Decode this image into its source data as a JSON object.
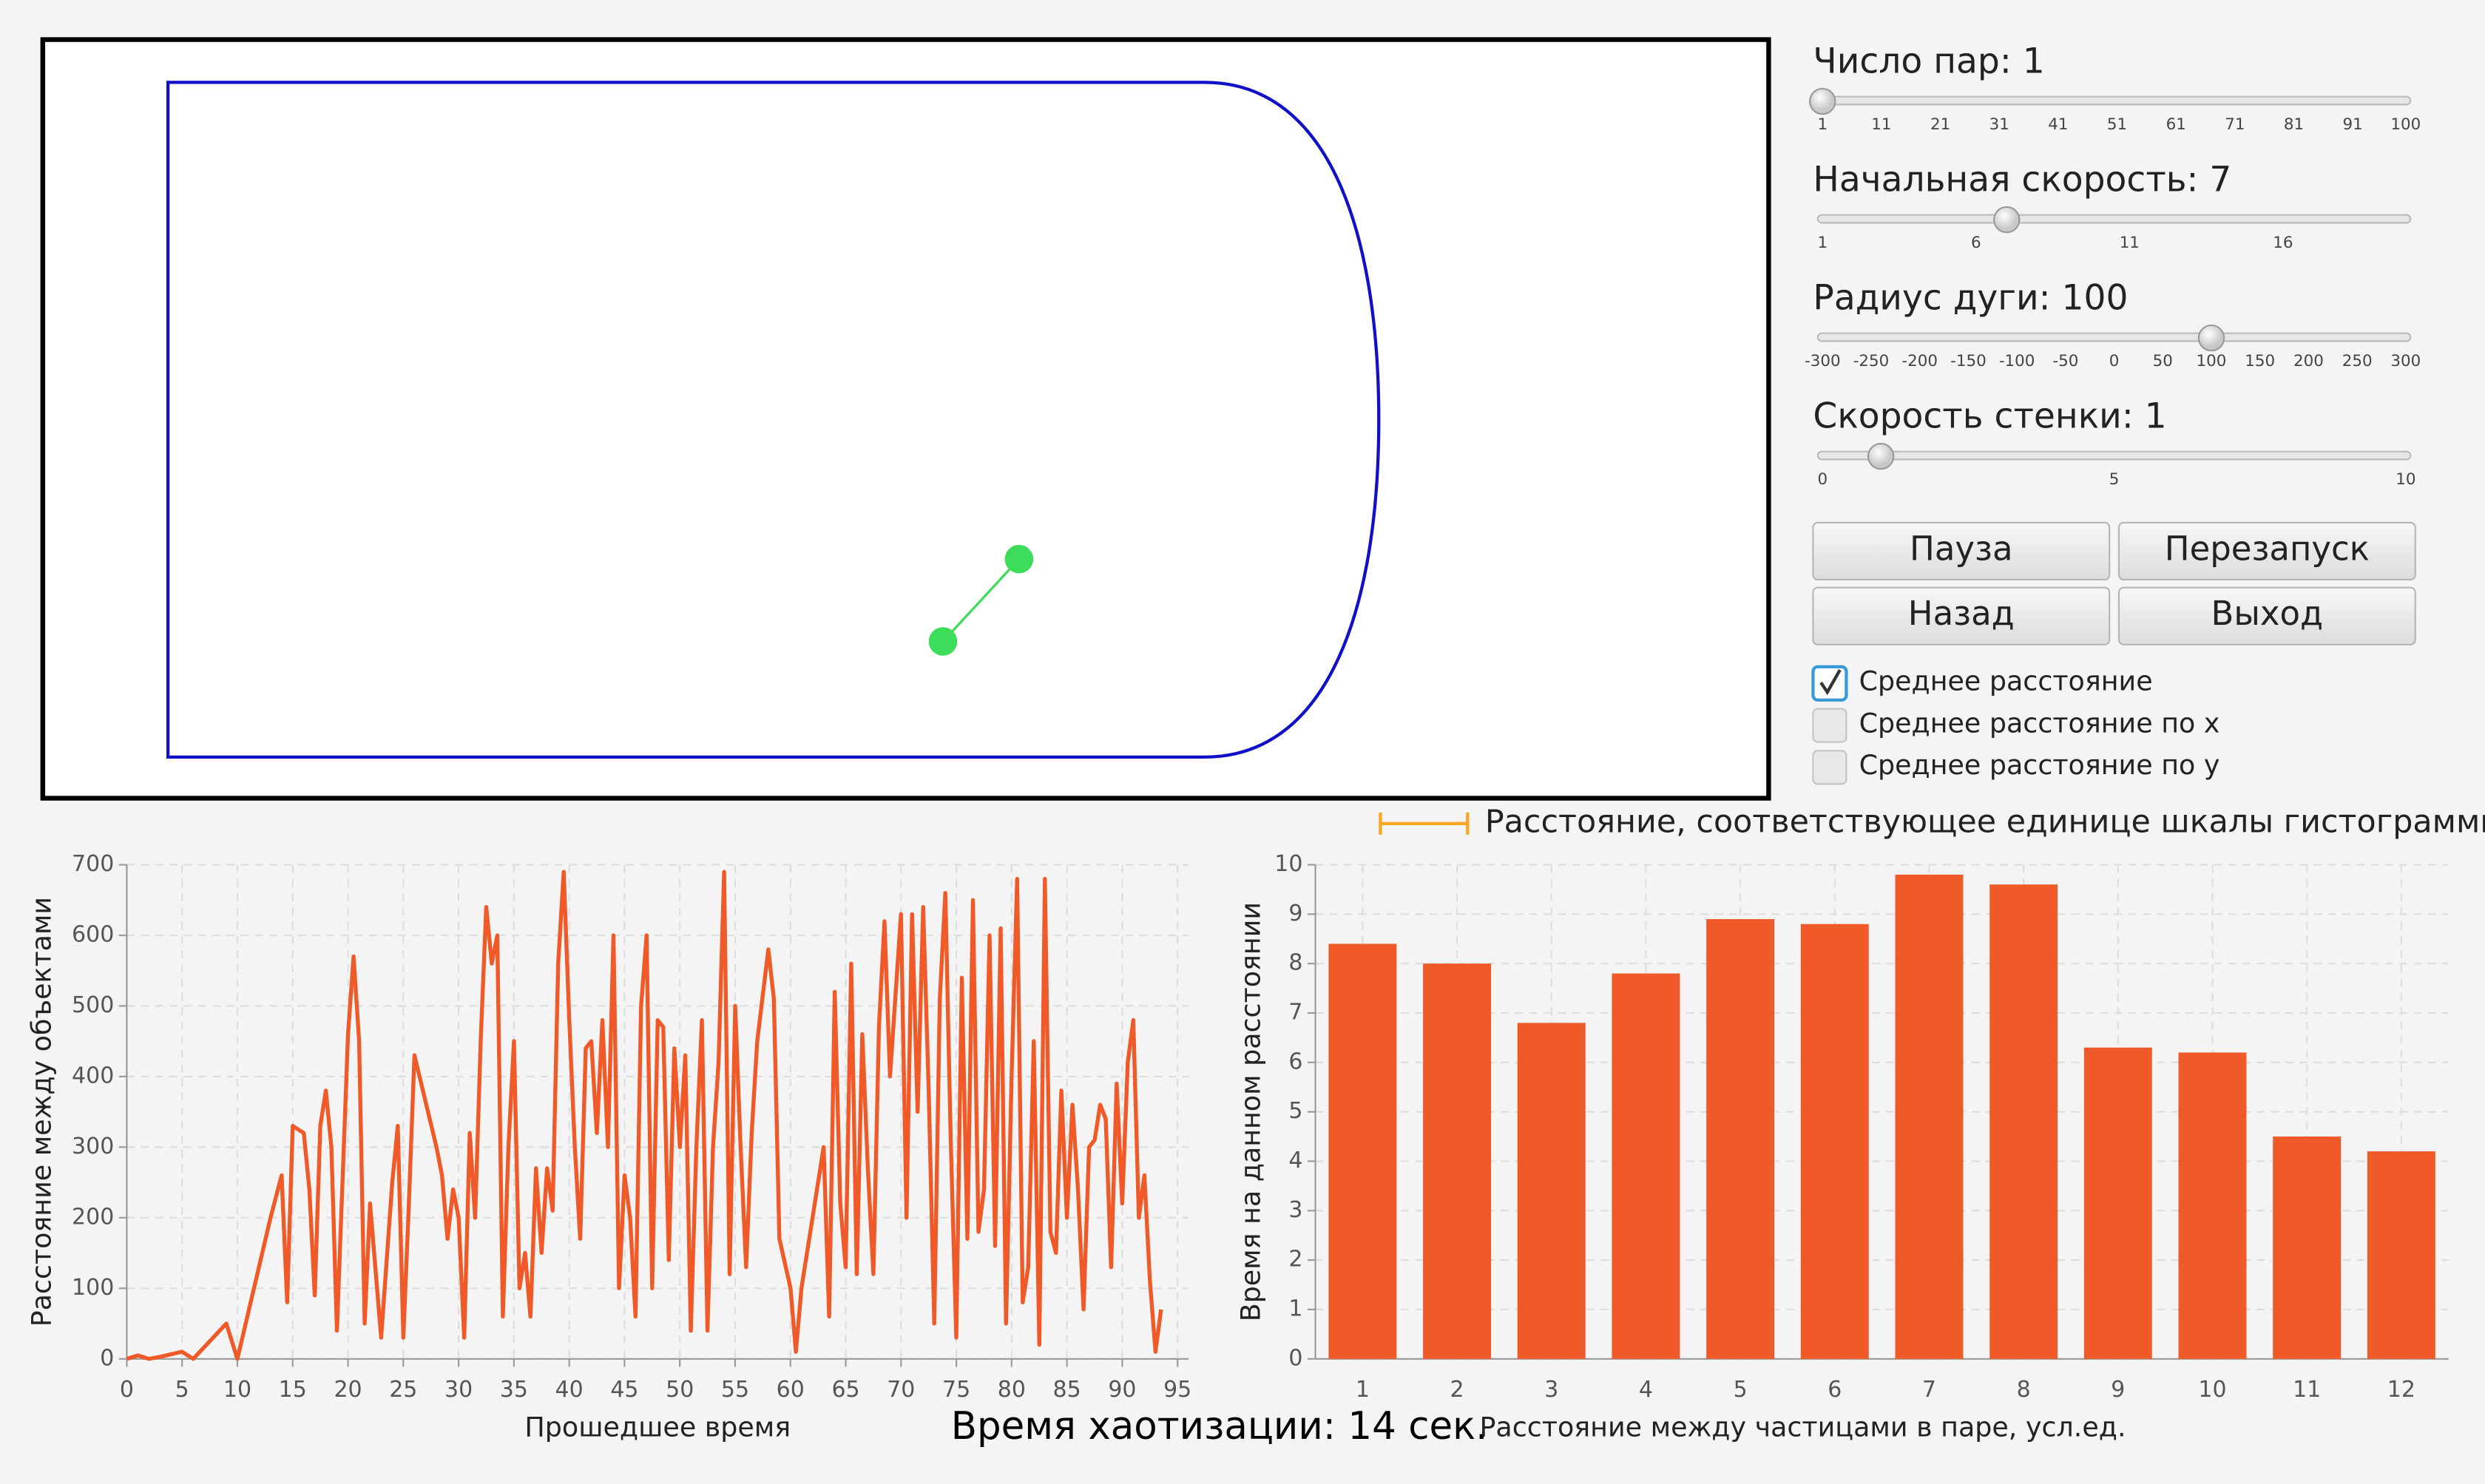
{
  "controls": {
    "sliders": [
      {
        "label": "Число пар: 1",
        "value": 1,
        "min": 1,
        "max": 100,
        "ticks": [
          1,
          11,
          21,
          31,
          41,
          51,
          61,
          71,
          81,
          91,
          100
        ]
      },
      {
        "label": "Начальная скорость: 7",
        "value": 7,
        "min": 1,
        "max": 20,
        "ticks": [
          1,
          6,
          11,
          16
        ]
      },
      {
        "label": "Радиус дуги: 100",
        "value": 100,
        "min": -300,
        "max": 300,
        "ticks": [
          -300,
          -250,
          -200,
          -150,
          -100,
          -50,
          0,
          50,
          100,
          150,
          200,
          250,
          300
        ]
      },
      {
        "label": "Скорость стенки: 1",
        "value": 1,
        "min": 0,
        "max": 10,
        "ticks": [
          0,
          5,
          10
        ]
      }
    ],
    "buttons": [
      "Пауза",
      "Перезапуск",
      "Назад",
      "Выход"
    ],
    "checkboxes": [
      {
        "label": "Среднее расстояние",
        "checked": true
      },
      {
        "label": "Среднее расстояние по x",
        "checked": false
      },
      {
        "label": "Среднее расстояние по y",
        "checked": false
      }
    ]
  },
  "scale_note": "Расстояние, соответствующее единице шкалы гистограммы",
  "chaos_time": "Время хаотизации: 14 сек.",
  "chart_data": [
    {
      "type": "line",
      "x_label": "Прошедшее время",
      "y_label": "Расстояние между объектами",
      "color": "#f05a28",
      "grid": true,
      "xlim": [
        0,
        96
      ],
      "ylim": [
        0,
        700
      ],
      "xticks": [
        0,
        5,
        10,
        15,
        20,
        25,
        30,
        35,
        40,
        45,
        50,
        55,
        60,
        65,
        70,
        75,
        80,
        85,
        90,
        95
      ],
      "yticks": [
        0,
        100,
        200,
        300,
        400,
        500,
        600,
        700
      ],
      "x": [
        0,
        1,
        2,
        3,
        5,
        6,
        9,
        10,
        13,
        14,
        14.5,
        15,
        16,
        16.5,
        17,
        17.5,
        18,
        18.5,
        19,
        20,
        20.5,
        21,
        21.5,
        22,
        23,
        24,
        24.5,
        25,
        25.5,
        26,
        28,
        28.5,
        29,
        29.5,
        30,
        30.5,
        31,
        31.5,
        32,
        32.5,
        33,
        33.5,
        34,
        34.5,
        35,
        35.5,
        36,
        36.5,
        37,
        37.5,
        38,
        38.5,
        39,
        39.5,
        40,
        40.5,
        41,
        41.5,
        42,
        42.5,
        43,
        43.5,
        44,
        44.5,
        45,
        45.5,
        46,
        46.5,
        47,
        47.5,
        48,
        48.5,
        49,
        49.5,
        50,
        50.5,
        51,
        51.5,
        52,
        52.5,
        53,
        53.5,
        54,
        54.5,
        55,
        55.5,
        56,
        56.5,
        57,
        58,
        58.5,
        59,
        60,
        60.5,
        61,
        62,
        63,
        63.5,
        64,
        64.5,
        65,
        65.5,
        66,
        66.5,
        67,
        67.5,
        68,
        68.5,
        69,
        70,
        70.5,
        71,
        71.5,
        72,
        72.5,
        73,
        73.5,
        74,
        74.5,
        75,
        75.5,
        76,
        76.5,
        77,
        77.5,
        78,
        78.5,
        79,
        79.5,
        80,
        80.5,
        81,
        81.5,
        82,
        82.5,
        83,
        83.5,
        84,
        84.5,
        85,
        85.5,
        86,
        86.5,
        87,
        87.5,
        88,
        88.5,
        89,
        89.5,
        90,
        90.5,
        91,
        91.5,
        92,
        92.5,
        93,
        93.5
      ],
      "values": [
        0,
        5,
        0,
        3,
        10,
        0,
        50,
        0,
        200,
        260,
        80,
        330,
        320,
        240,
        90,
        330,
        380,
        300,
        40,
        460,
        570,
        450,
        50,
        220,
        30,
        250,
        330,
        30,
        220,
        430,
        300,
        260,
        170,
        240,
        200,
        30,
        320,
        200,
        450,
        640,
        560,
        600,
        60,
        300,
        450,
        100,
        150,
        60,
        270,
        150,
        270,
        210,
        560,
        690,
        480,
        300,
        170,
        440,
        450,
        320,
        480,
        300,
        600,
        100,
        260,
        200,
        60,
        500,
        600,
        100,
        480,
        470,
        140,
        440,
        300,
        430,
        40,
        300,
        480,
        40,
        300,
        420,
        690,
        120,
        500,
        300,
        130,
        320,
        450,
        580,
        510,
        170,
        100,
        10,
        100,
        200,
        300,
        60,
        520,
        220,
        130,
        560,
        120,
        460,
        270,
        120,
        470,
        620,
        400,
        630,
        200,
        630,
        350,
        640,
        380,
        50,
        510,
        660,
        310,
        30,
        540,
        170,
        650,
        180,
        240,
        600,
        160,
        610,
        50,
        400,
        680,
        80,
        130,
        450,
        20,
        680,
        180,
        150,
        380,
        200,
        360,
        240,
        70,
        300,
        310,
        360,
        340,
        130,
        390,
        220,
        420,
        480,
        200,
        260,
        110,
        10,
        70
      ]
    },
    {
      "type": "bar",
      "x_label": "Расстояние между частицами в паре, усл.ед.",
      "y_label": "Время на данном расстоянии",
      "color": "#f05a28",
      "grid": true,
      "ylim": [
        0,
        10
      ],
      "yticks": [
        0,
        1,
        2,
        3,
        4,
        5,
        6,
        7,
        8,
        9,
        10
      ],
      "categories": [
        "1",
        "2",
        "3",
        "4",
        "5",
        "6",
        "7",
        "8",
        "9",
        "10",
        "11",
        "12"
      ],
      "values": [
        8.4,
        8.0,
        6.8,
        7.8,
        8.9,
        8.8,
        9.8,
        9.6,
        6.3,
        6.2,
        4.5,
        4.2
      ]
    }
  ]
}
